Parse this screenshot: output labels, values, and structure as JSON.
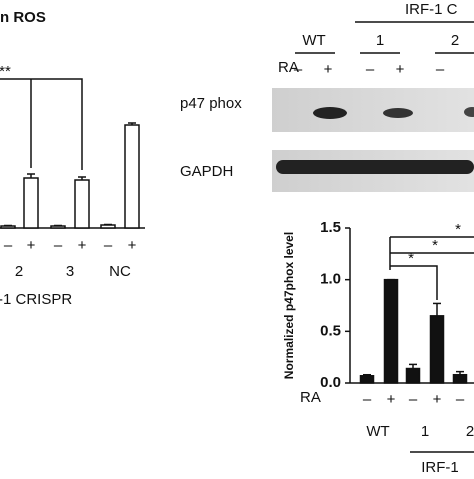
{
  "chart_data": [
    {
      "type": "bar",
      "title": "n ROS",
      "categories": [
        "–",
        "+",
        "–",
        "+",
        "–",
        "+"
      ],
      "groups": [
        "2",
        "3",
        "NC"
      ],
      "group_label": "-1 CRISPR",
      "values": [
        2,
        50,
        2,
        48,
        3,
        103
      ],
      "errors": [
        0.5,
        4,
        0.5,
        3,
        0.5,
        2
      ],
      "ylim": [
        0,
        120
      ],
      "color": "#ffffff",
      "significance": [
        "**"
      ]
    },
    {
      "type": "bar",
      "y_label": "Normalized p47phox level",
      "row_label": "RA",
      "categories": [
        "–",
        "+",
        "–",
        "+",
        "–"
      ],
      "groups": [
        "WT",
        "1",
        "2"
      ],
      "group_label": "IRF-1",
      "values": [
        0.07,
        1.0,
        0.14,
        0.65,
        0.08
      ],
      "errors": [
        0.01,
        0,
        0.04,
        0.12,
        0.03
      ],
      "ylim": [
        0,
        1.5
      ],
      "yticks": [
        {
          "value": 0,
          "label": "0.0"
        },
        0.5,
        {
          "value": 1,
          "label": "1.0"
        },
        1.5
      ],
      "color": "#111111",
      "significance": [
        "*",
        "*",
        "*"
      ]
    }
  ],
  "blot": {
    "group_title": "IRF-1 C",
    "groups": [
      "WT",
      "1",
      "2"
    ],
    "row_label": "RA",
    "signs": [
      "–",
      "+",
      "–",
      "+",
      "–"
    ],
    "rows": [
      "p47 phox",
      "GAPDH"
    ]
  }
}
